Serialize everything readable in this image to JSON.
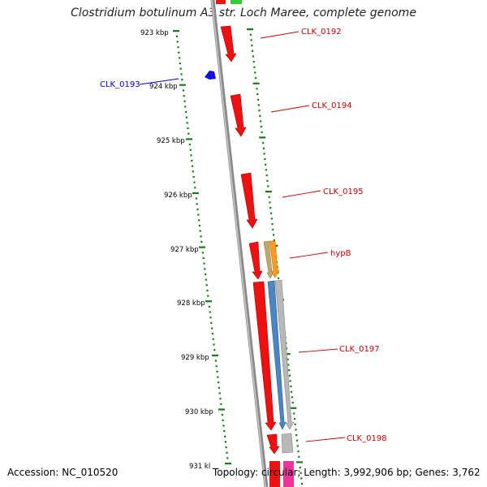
{
  "title": "Clostridium botulinum A3 str. Loch Maree, complete genome",
  "accession": "Accession: NC_010520",
  "summary": "Topology: circular; Length: 3,992,906 bp; Genes: 3,762",
  "colors": {
    "backbone": "#8a8a8a",
    "tick": "#1a7a1a",
    "cds_red": "#ee1111",
    "cds_blue": "#1111dd",
    "label_red": "#cc0000",
    "label_blue": "#0000cc"
  },
  "ticks": [
    {
      "label": "923 kbp"
    },
    {
      "label": "924 kbp"
    },
    {
      "label": "925 kbp"
    },
    {
      "label": "926 kbp"
    },
    {
      "label": "927 kbp"
    },
    {
      "label": "928 kbp"
    },
    {
      "label": "929 kbp"
    },
    {
      "label": "930 kbp"
    },
    {
      "label": "931 kl"
    }
  ],
  "gene_labels": [
    {
      "text": "CLK_0192",
      "color": "#cc0000"
    },
    {
      "text": "CLK_0193",
      "color": "#0000cc"
    },
    {
      "text": "CLK_0194",
      "color": "#cc0000"
    },
    {
      "text": "CLK_0195",
      "color": "#cc0000"
    },
    {
      "text": "hypB",
      "color": "#cc0000"
    },
    {
      "text": "CLK_0197",
      "color": "#cc0000"
    },
    {
      "text": "CLK_0198",
      "color": "#cc0000"
    }
  ]
}
